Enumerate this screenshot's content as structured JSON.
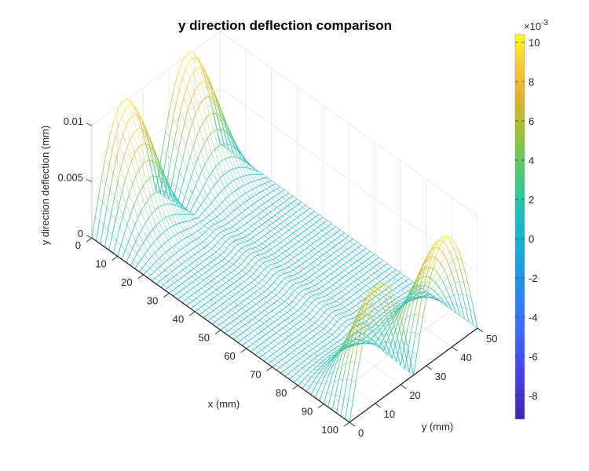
{
  "chart_data": {
    "type": "surface3d",
    "title": "y direction deflection comparison",
    "xlabel": "x (mm)",
    "ylabel": "y (mm)",
    "zlabel": "y direction deflection (mm)",
    "xlim": [
      0,
      100
    ],
    "ylim": [
      0,
      50
    ],
    "zlim": [
      0,
      0.01
    ],
    "xticks": [
      0,
      10,
      20,
      30,
      40,
      50,
      60,
      70,
      80,
      90,
      100
    ],
    "yticks": [
      0,
      10,
      20,
      30,
      40,
      50
    ],
    "zticks": [
      {
        "value": 0,
        "label": "0"
      },
      {
        "value": 0.005,
        "label": "0.005"
      },
      {
        "value": 0.01,
        "label": "0.01"
      }
    ],
    "grid": true,
    "surface": {
      "description": "Mesh of y-direction deflection over plate; sinusoidal bulges along the edges x=0 and x=100, near-zero elsewhere with a ridge along y=25",
      "x_range": [
        0,
        100
      ],
      "y_range": [
        0,
        50
      ],
      "edge_peak_deflection": 0.0102,
      "edge_profile": "half-sine per half-width (two lobes across y at each end x=0 and x=100)",
      "edge_decay_length_mm": 12,
      "interior_value": 0.0
    },
    "colorbar": {
      "colormap": "parula",
      "multiplier_label": "×10",
      "multiplier_exponent": "-3",
      "range": [
        -9.2,
        10.4
      ],
      "ticks": [
        -8,
        -6,
        -4,
        -2,
        0,
        2,
        4,
        6,
        8,
        10
      ],
      "placement": "right"
    }
  }
}
